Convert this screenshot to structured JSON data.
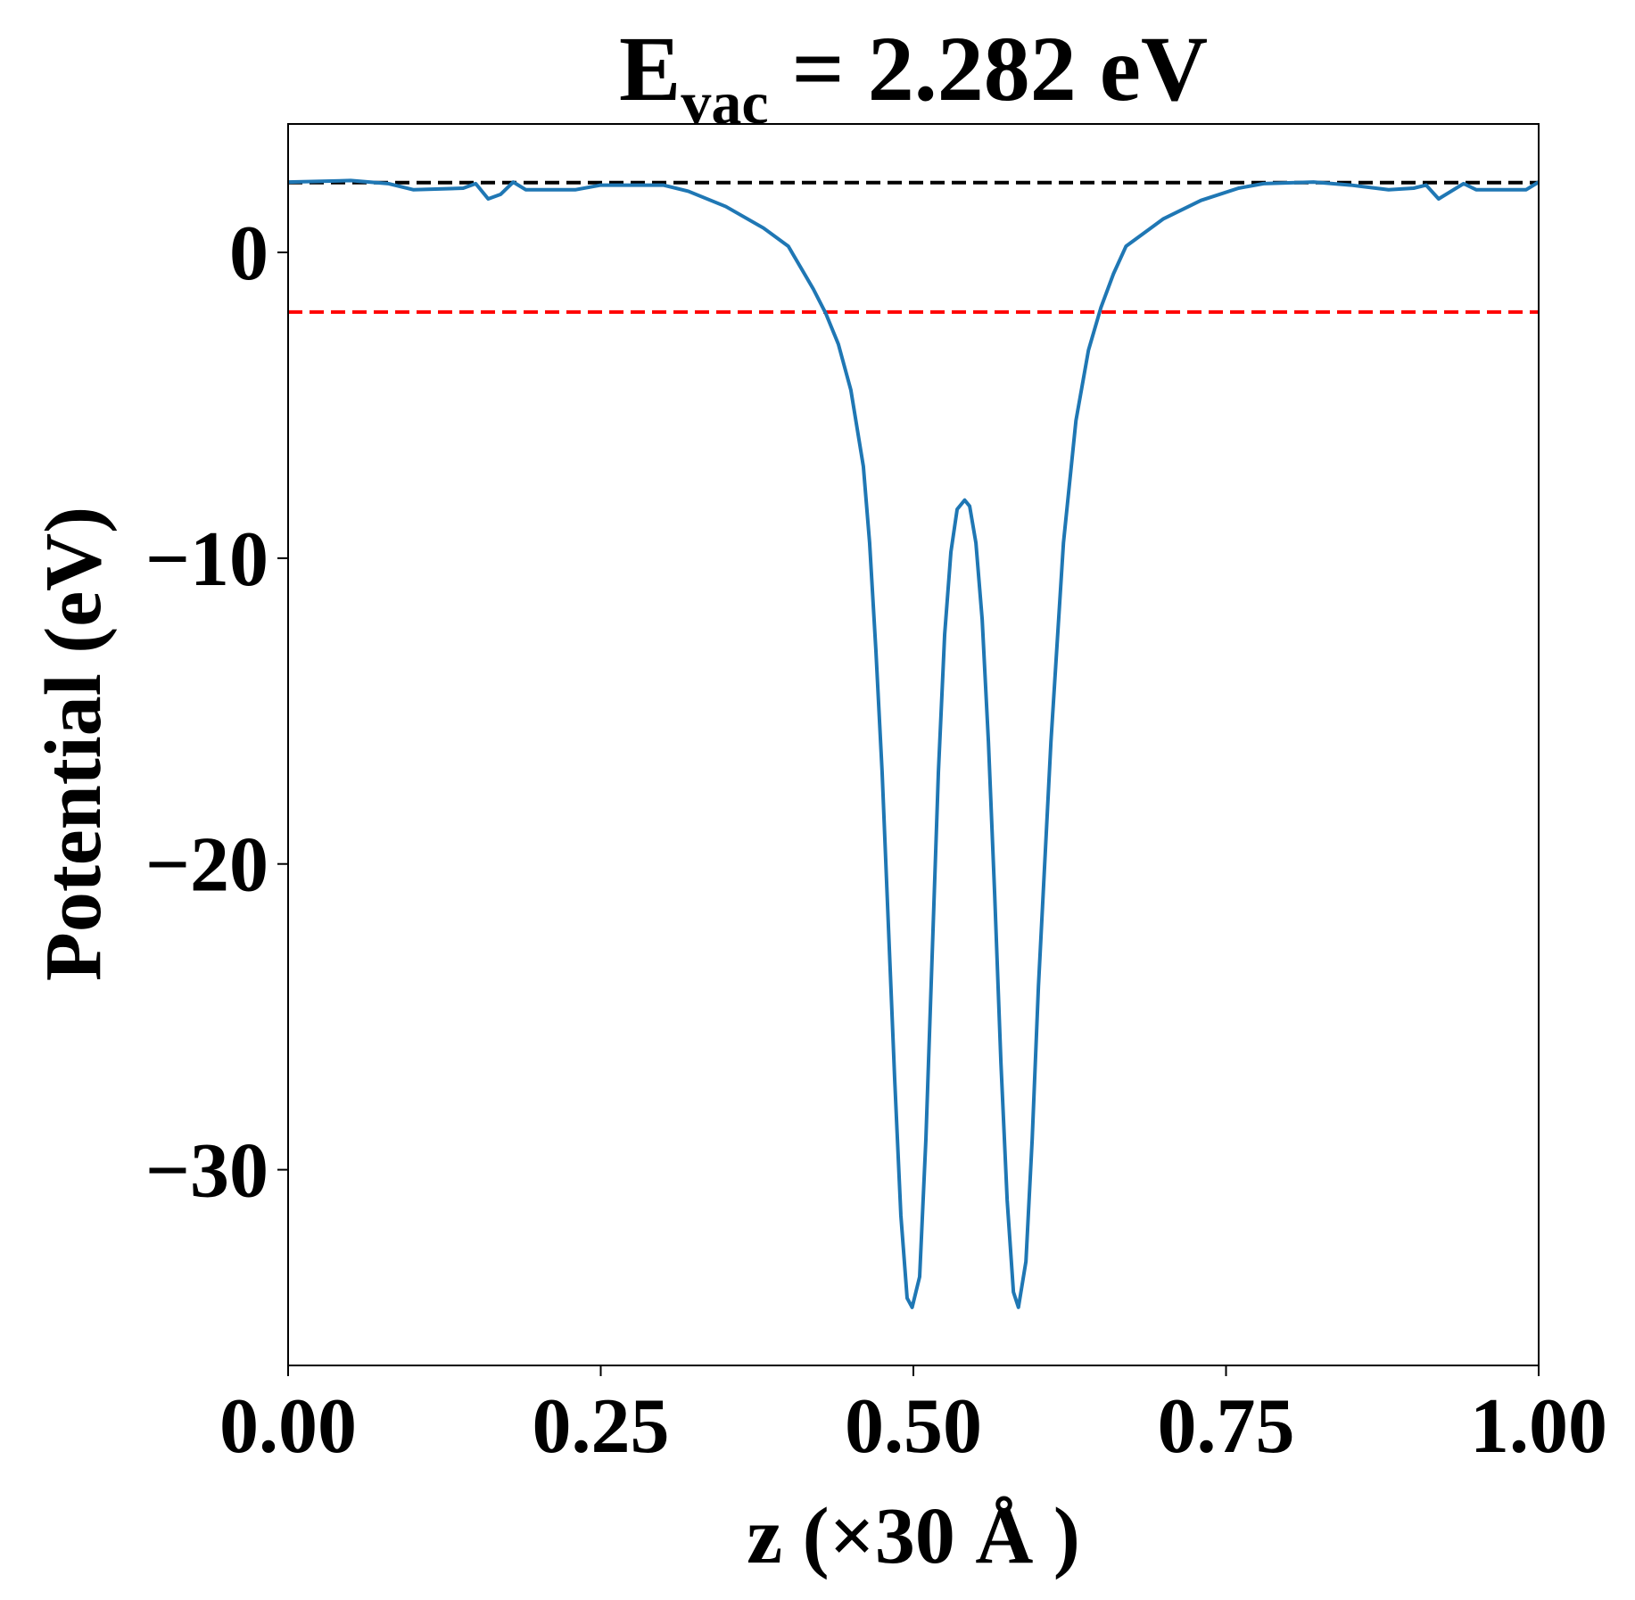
{
  "chart_data": {
    "type": "line",
    "title_main": "E",
    "title_sub": "vac",
    "title_rest": "= 2.282 eV",
    "xlabel": "z (×30 Å )",
    "ylabel": "Potential (eV)",
    "x": [
      0,
      0.05,
      0.08,
      0.1,
      0.14,
      0.15,
      0.16,
      0.17,
      0.18,
      0.19,
      0.23,
      0.25,
      0.3,
      0.32,
      0.35,
      0.38,
      0.4,
      0.41,
      0.42,
      0.43,
      0.44,
      0.45,
      0.46,
      0.465,
      0.47,
      0.475,
      0.48,
      0.485,
      0.49,
      0.495,
      0.499,
      0.505,
      0.51,
      0.515,
      0.52,
      0.525,
      0.53,
      0.535,
      0.541,
      0.545,
      0.55,
      0.555,
      0.56,
      0.565,
      0.57,
      0.575,
      0.58,
      0.584,
      0.59,
      0.595,
      0.6,
      0.61,
      0.62,
      0.63,
      0.64,
      0.65,
      0.66,
      0.67,
      0.7,
      0.73,
      0.76,
      0.78,
      0.82,
      0.85,
      0.88,
      0.9,
      0.91,
      0.92,
      0.93,
      0.94,
      0.95,
      0.99,
      1.0
    ],
    "series": [
      {
        "color": "#1f77b4",
        "values": [
          2.3,
          2.35,
          2.25,
          2.05,
          2.1,
          2.25,
          1.75,
          1.9,
          2.3,
          2.05,
          2.05,
          2.2,
          2.2,
          2.0,
          1.5,
          0.8,
          0.2,
          -0.5,
          -1.2,
          -2.0,
          -3.0,
          -4.5,
          -7.0,
          -9.5,
          -13,
          -17,
          -22,
          -27,
          -31.5,
          -34.2,
          -34.5,
          -33.5,
          -29,
          -23,
          -17,
          -12.5,
          -9.8,
          -8.4,
          -8.1,
          -8.3,
          -9.5,
          -12,
          -16,
          -21,
          -26.5,
          -31,
          -34,
          -34.5,
          -33,
          -29,
          -24,
          -16,
          -9.5,
          -5.5,
          -3.2,
          -1.8,
          -0.7,
          0.2,
          1.1,
          1.7,
          2.1,
          2.25,
          2.3,
          2.2,
          2.05,
          2.1,
          2.2,
          1.75,
          2.0,
          2.25,
          2.05,
          2.05,
          2.3
        ]
      }
    ],
    "hlines": [
      {
        "y": 2.282,
        "color": "#000000"
      },
      {
        "y": -1.95,
        "color": "#ff0000"
      }
    ],
    "xlim": [
      0,
      1
    ],
    "ylim": [
      -36.4,
      4.2
    ],
    "xticks": [
      {
        "value": 0,
        "label": "0.00"
      },
      {
        "value": 0.25,
        "label": "0.25"
      },
      {
        "value": 0.5,
        "label": "0.50"
      },
      {
        "value": 0.75,
        "label": "0.75"
      },
      {
        "value": 1,
        "label": "1.00"
      }
    ],
    "yticks": [
      {
        "value": 0,
        "label": "0"
      },
      {
        "value": -10,
        "label": "−10"
      },
      {
        "value": -20,
        "label": "−20"
      },
      {
        "value": -30,
        "label": "−30"
      }
    ]
  }
}
